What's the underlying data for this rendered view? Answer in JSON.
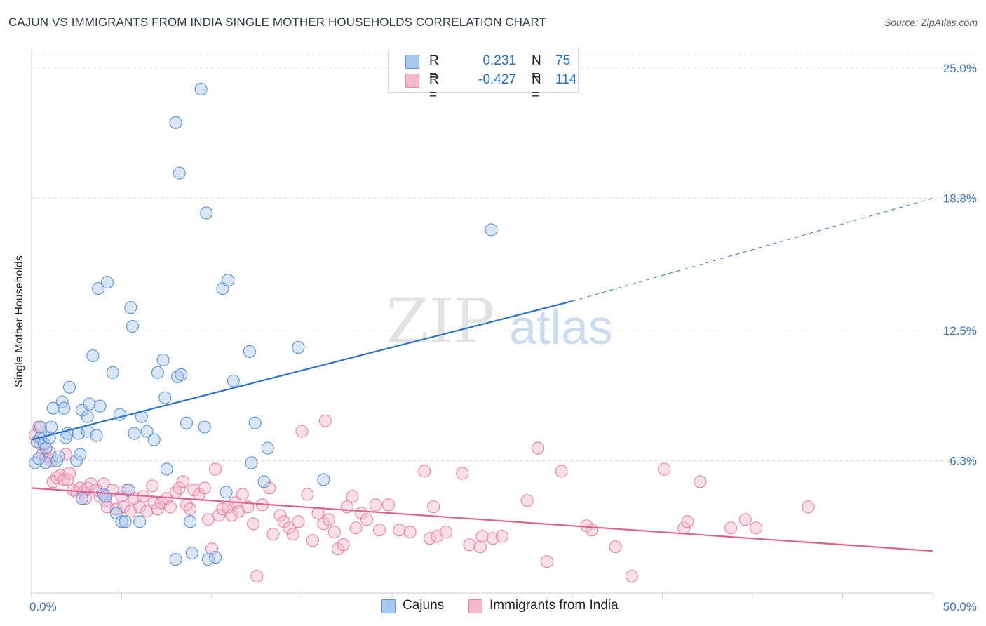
{
  "title": "CAJUN VS IMMIGRANTS FROM INDIA SINGLE MOTHER HOUSEHOLDS CORRELATION CHART",
  "source": "Source: ZipAtlas.com",
  "watermark": {
    "zip": "ZIP",
    "atlas": "atlas"
  },
  "legend": {
    "row1": {
      "r_label": "R =",
      "r_value": "0.231",
      "n_label": "N =",
      "n_value": "75"
    },
    "row2": {
      "r_label": "R =",
      "r_value": "-0.427",
      "n_label": "N =",
      "n_value": "114"
    }
  },
  "bottom_legend": {
    "cajuns": "Cajuns",
    "india": "Immigrants from India"
  },
  "colors": {
    "cajun_fill": "#a9c8f0",
    "cajun_stroke": "#5b93d6",
    "cajun_line": "#2f74c8",
    "india_fill": "#f5b8cc",
    "india_stroke": "#e882a6",
    "india_line": "#e0618d",
    "tick_text": "#3a78c9",
    "grid": "#dcdcdc"
  },
  "chart_data": {
    "type": "scatter",
    "title": "CAJUN VS IMMIGRANTS FROM INDIA SINGLE MOTHER HOUSEHOLDS CORRELATION CHART",
    "xlabel": "",
    "ylabel": "Single Mother Households",
    "xlim": [
      0,
      50
    ],
    "ylim": [
      0,
      26.5
    ],
    "x_tick_labels": [
      "0.0%",
      "50.0%"
    ],
    "y_ticks": [
      6.3,
      12.5,
      18.8,
      25.0
    ],
    "y_tick_labels": [
      "6.3%",
      "12.5%",
      "18.8%",
      "25.0%"
    ],
    "grid": true,
    "legend_position": "top-center",
    "series": [
      {
        "name": "Cajuns",
        "r": 0.231,
        "n": 75,
        "trend": {
          "x0": 0,
          "y0": 7.3,
          "x1": 30,
          "y1": 13.9,
          "dashed_to_x": 50,
          "dashed_to_y": 18.8
        },
        "points": [
          [
            0.2,
            6.2
          ],
          [
            0.3,
            7.2
          ],
          [
            0.5,
            7.4
          ],
          [
            0.5,
            7.9
          ],
          [
            0.7,
            7.1
          ],
          [
            0.8,
            6.9
          ],
          [
            0.8,
            6.2
          ],
          [
            1.0,
            7.4
          ],
          [
            1.1,
            7.9
          ],
          [
            1.2,
            8.8
          ],
          [
            1.4,
            6.3
          ],
          [
            1.5,
            6.5
          ],
          [
            1.7,
            9.1
          ],
          [
            1.8,
            8.8
          ],
          [
            1.9,
            7.4
          ],
          [
            2.0,
            7.6
          ],
          [
            2.1,
            9.8
          ],
          [
            2.5,
            6.3
          ],
          [
            2.6,
            7.6
          ],
          [
            2.7,
            6.6
          ],
          [
            2.8,
            4.5
          ],
          [
            2.8,
            8.7
          ],
          [
            3.1,
            7.7
          ],
          [
            3.1,
            8.4
          ],
          [
            3.2,
            9.0
          ],
          [
            3.4,
            11.3
          ],
          [
            3.6,
            7.5
          ],
          [
            3.7,
            14.5
          ],
          [
            3.8,
            8.9
          ],
          [
            4.0,
            4.7
          ],
          [
            4.1,
            4.6
          ],
          [
            4.2,
            14.8
          ],
          [
            4.5,
            10.5
          ],
          [
            4.7,
            3.8
          ],
          [
            4.9,
            8.5
          ],
          [
            5.0,
            3.4
          ],
          [
            5.2,
            3.4
          ],
          [
            5.4,
            4.9
          ],
          [
            5.5,
            13.6
          ],
          [
            5.6,
            12.7
          ],
          [
            5.7,
            7.6
          ],
          [
            6.0,
            3.4
          ],
          [
            6.1,
            8.4
          ],
          [
            6.4,
            7.7
          ],
          [
            6.8,
            7.3
          ],
          [
            7.0,
            10.5
          ],
          [
            7.3,
            11.1
          ],
          [
            7.4,
            9.3
          ],
          [
            7.5,
            5.9
          ],
          [
            8.0,
            1.6
          ],
          [
            8.0,
            22.4
          ],
          [
            8.1,
            10.3
          ],
          [
            8.2,
            20.0
          ],
          [
            8.3,
            10.4
          ],
          [
            8.6,
            8.1
          ],
          [
            8.8,
            3.4
          ],
          [
            8.9,
            1.9
          ],
          [
            9.4,
            24.0
          ],
          [
            9.6,
            7.9
          ],
          [
            9.7,
            18.1
          ],
          [
            9.8,
            1.6
          ],
          [
            10.2,
            1.7
          ],
          [
            10.6,
            14.5
          ],
          [
            10.8,
            4.8
          ],
          [
            10.9,
            14.9
          ],
          [
            11.2,
            10.1
          ],
          [
            12.1,
            11.5
          ],
          [
            12.2,
            6.2
          ],
          [
            12.4,
            8.1
          ],
          [
            12.9,
            5.3
          ],
          [
            13.1,
            6.9
          ],
          [
            14.8,
            11.7
          ],
          [
            16.2,
            5.4
          ],
          [
            25.5,
            17.3
          ],
          [
            0.4,
            6.4
          ]
        ]
      },
      {
        "name": "Immigrants from India",
        "r": -0.427,
        "n": 114,
        "trend": {
          "x0": 0,
          "y0": 5.0,
          "x1": 50,
          "y1": 2.0
        },
        "points": [
          [
            0.2,
            7.5
          ],
          [
            0.4,
            7.9
          ],
          [
            0.5,
            7.1
          ],
          [
            0.6,
            6.6
          ],
          [
            0.8,
            6.5
          ],
          [
            1.0,
            6.7
          ],
          [
            1.1,
            6.3
          ],
          [
            1.2,
            5.3
          ],
          [
            1.4,
            5.5
          ],
          [
            1.6,
            5.6
          ],
          [
            1.8,
            5.4
          ],
          [
            1.9,
            6.6
          ],
          [
            2.0,
            5.4
          ],
          [
            2.1,
            5.7
          ],
          [
            2.3,
            4.9
          ],
          [
            2.5,
            4.8
          ],
          [
            2.7,
            5.0
          ],
          [
            2.9,
            4.8
          ],
          [
            3.0,
            4.5
          ],
          [
            3.1,
            5.0
          ],
          [
            3.3,
            5.2
          ],
          [
            3.6,
            4.9
          ],
          [
            3.8,
            4.6
          ],
          [
            4.0,
            5.2
          ],
          [
            4.1,
            4.4
          ],
          [
            4.2,
            4.1
          ],
          [
            4.5,
            4.9
          ],
          [
            4.7,
            4.0
          ],
          [
            5.0,
            4.6
          ],
          [
            5.1,
            4.1
          ],
          [
            5.3,
            4.9
          ],
          [
            5.5,
            3.9
          ],
          [
            5.7,
            4.5
          ],
          [
            6.0,
            4.1
          ],
          [
            6.2,
            4.6
          ],
          [
            6.4,
            3.9
          ],
          [
            6.7,
            5.1
          ],
          [
            6.8,
            4.3
          ],
          [
            7.0,
            4.0
          ],
          [
            7.2,
            4.3
          ],
          [
            7.5,
            4.5
          ],
          [
            7.7,
            4.1
          ],
          [
            8.0,
            4.8
          ],
          [
            8.2,
            5.0
          ],
          [
            8.4,
            5.3
          ],
          [
            8.6,
            4.2
          ],
          [
            8.8,
            4.0
          ],
          [
            9.0,
            4.9
          ],
          [
            9.3,
            4.7
          ],
          [
            9.6,
            5.0
          ],
          [
            9.8,
            3.5
          ],
          [
            10.0,
            2.1
          ],
          [
            10.2,
            5.9
          ],
          [
            10.4,
            3.7
          ],
          [
            10.6,
            4.0
          ],
          [
            10.9,
            4.1
          ],
          [
            11.1,
            3.7
          ],
          [
            11.3,
            4.3
          ],
          [
            11.5,
            3.9
          ],
          [
            11.7,
            4.7
          ],
          [
            12.0,
            4.1
          ],
          [
            12.3,
            3.3
          ],
          [
            12.5,
            0.8
          ],
          [
            12.8,
            4.2
          ],
          [
            13.2,
            5.0
          ],
          [
            13.4,
            2.8
          ],
          [
            13.8,
            3.7
          ],
          [
            14.0,
            3.4
          ],
          [
            14.3,
            3.1
          ],
          [
            14.5,
            2.8
          ],
          [
            14.8,
            3.4
          ],
          [
            15.0,
            7.7
          ],
          [
            15.3,
            4.7
          ],
          [
            15.6,
            2.5
          ],
          [
            15.9,
            3.8
          ],
          [
            16.2,
            3.3
          ],
          [
            16.5,
            3.5
          ],
          [
            16.8,
            2.9
          ],
          [
            17.0,
            2.1
          ],
          [
            17.3,
            2.3
          ],
          [
            17.5,
            4.1
          ],
          [
            17.8,
            4.6
          ],
          [
            18.0,
            3.1
          ],
          [
            18.3,
            3.8
          ],
          [
            18.6,
            3.5
          ],
          [
            19.1,
            4.2
          ],
          [
            19.3,
            3.0
          ],
          [
            19.8,
            4.2
          ],
          [
            20.4,
            3.0
          ],
          [
            21.0,
            2.9
          ],
          [
            21.8,
            5.8
          ],
          [
            22.1,
            2.6
          ],
          [
            22.3,
            4.1
          ],
          [
            22.5,
            2.7
          ],
          [
            23.0,
            2.9
          ],
          [
            23.9,
            5.7
          ],
          [
            24.3,
            2.3
          ],
          [
            24.9,
            2.2
          ],
          [
            25.0,
            2.7
          ],
          [
            25.6,
            2.6
          ],
          [
            26.1,
            2.7
          ],
          [
            27.5,
            4.4
          ],
          [
            28.1,
            6.9
          ],
          [
            28.6,
            1.5
          ],
          [
            29.4,
            5.8
          ],
          [
            30.8,
            3.2
          ],
          [
            31.1,
            3.0
          ],
          [
            32.4,
            2.2
          ],
          [
            33.3,
            0.8
          ],
          [
            35.1,
            5.9
          ],
          [
            36.2,
            3.1
          ],
          [
            36.4,
            3.4
          ],
          [
            37.1,
            5.3
          ],
          [
            38.8,
            3.1
          ],
          [
            39.6,
            3.5
          ],
          [
            40.2,
            3.1
          ],
          [
            43.1,
            4.1
          ],
          [
            16.3,
            8.2
          ]
        ]
      }
    ]
  }
}
